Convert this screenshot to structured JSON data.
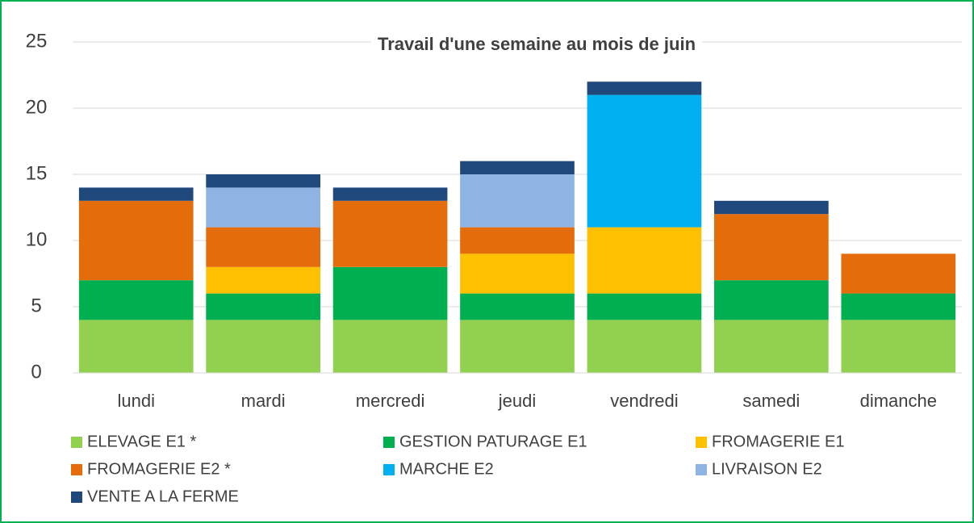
{
  "chart_data": {
    "type": "stacked_bar",
    "title": "Travail d'une semaine au mois de juin",
    "categories": [
      "lundi",
      "mardi",
      "mercredi",
      "jeudi",
      "vendredi",
      "samedi",
      "dimanche"
    ],
    "series": [
      {
        "name": "ELEVAGE E1 *",
        "color": "#92d050",
        "values": [
          4,
          4,
          4,
          4,
          4,
          4,
          4
        ]
      },
      {
        "name": "GESTION PATURAGE E1",
        "color": "#00b050",
        "values": [
          3,
          2,
          4,
          2,
          2,
          3,
          2
        ]
      },
      {
        "name": "FROMAGERIE E1",
        "color": "#ffc000",
        "values": [
          0,
          2,
          0,
          3,
          5,
          0,
          0
        ]
      },
      {
        "name": "FROMAGERIE E2 *",
        "color": "#e46c0a",
        "values": [
          6,
          3,
          5,
          2,
          0,
          5,
          3
        ]
      },
      {
        "name": "MARCHE E2",
        "color": "#00b0f0",
        "values": [
          0,
          0,
          0,
          0,
          10,
          0,
          0
        ]
      },
      {
        "name": "LIVRAISON E2",
        "color": "#8eb4e3",
        "values": [
          0,
          3,
          0,
          4,
          0,
          0,
          0
        ]
      },
      {
        "name": "VENTE A LA FERME",
        "color": "#1f497d",
        "values": [
          1,
          1,
          1,
          1,
          1,
          1,
          0
        ]
      }
    ],
    "ylim": [
      0,
      25
    ],
    "yticks": [
      0,
      5,
      10,
      15,
      20,
      25
    ],
    "grid": true,
    "legend": "bottom"
  }
}
